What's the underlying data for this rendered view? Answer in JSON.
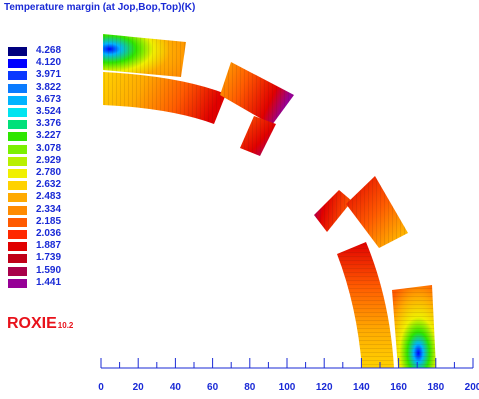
{
  "title": "Temperature margin (at Jop,Bop,Top)(K)",
  "legend": [
    {
      "value": "4.268",
      "color": "#00007f"
    },
    {
      "value": "4.120",
      "color": "#0000ff"
    },
    {
      "value": "3.971",
      "color": "#0a38ff"
    },
    {
      "value": "3.822",
      "color": "#0a7bff"
    },
    {
      "value": "3.673",
      "color": "#00b4ff"
    },
    {
      "value": "3.524",
      "color": "#00e4f0"
    },
    {
      "value": "3.376",
      "color": "#00e07a"
    },
    {
      "value": "3.227",
      "color": "#2ee600"
    },
    {
      "value": "3.078",
      "color": "#7cf000"
    },
    {
      "value": "2.929",
      "color": "#b8f000"
    },
    {
      "value": "2.780",
      "color": "#f0f000"
    },
    {
      "value": "2.632",
      "color": "#ffd200"
    },
    {
      "value": "2.483",
      "color": "#ffaa00"
    },
    {
      "value": "2.334",
      "color": "#ff8a00"
    },
    {
      "value": "2.185",
      "color": "#ff5a00"
    },
    {
      "value": "2.036",
      "color": "#ff2800"
    },
    {
      "value": "1.887",
      "color": "#e00000"
    },
    {
      "value": "1.739",
      "color": "#c00018"
    },
    {
      "value": "1.590",
      "color": "#a8004a"
    },
    {
      "value": "1.441",
      "color": "#960096"
    }
  ],
  "logo": {
    "text": "ROXIE",
    "version": "10.2"
  },
  "axis": {
    "tick_labels": [
      "0",
      "20",
      "40",
      "60",
      "80",
      "100",
      "120",
      "140",
      "160",
      "180",
      "200"
    ],
    "range": [
      0,
      200
    ],
    "label_color": "#1a2ad6"
  }
}
